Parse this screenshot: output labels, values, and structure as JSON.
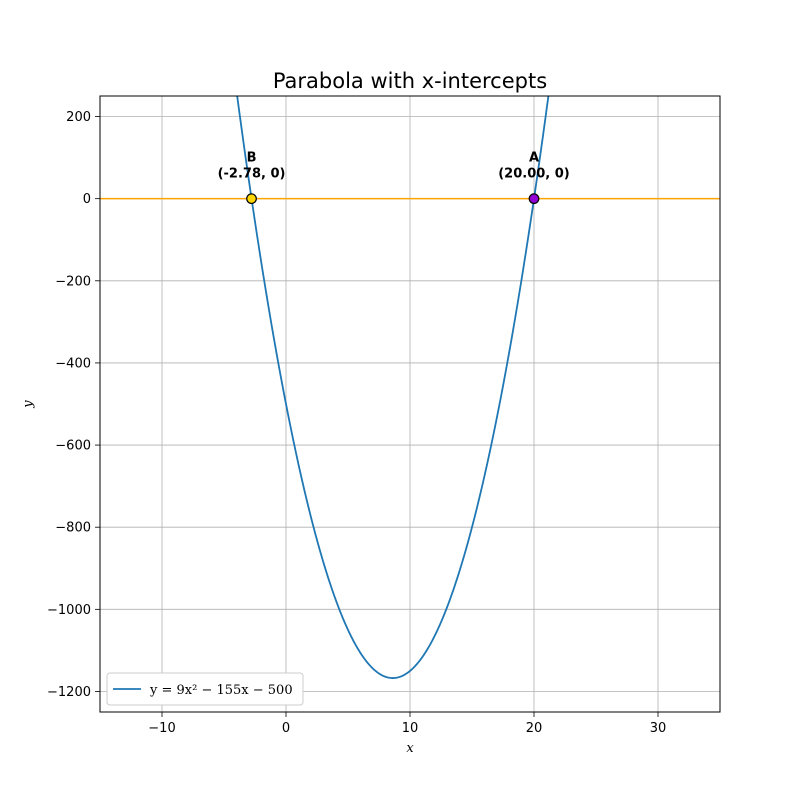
{
  "chart_data": {
    "type": "line",
    "title": "Parabola with x-intercepts",
    "xlabel": "x",
    "ylabel": "y",
    "xlim": [
      -15,
      35
    ],
    "ylim": [
      -1250,
      250
    ],
    "xticks": [
      -10,
      0,
      10,
      20,
      30
    ],
    "xtick_labels": [
      "−10",
      "0",
      "10",
      "20",
      "30"
    ],
    "yticks": [
      200,
      0,
      -200,
      -400,
      -600,
      -800,
      -1000,
      -1200
    ],
    "ytick_labels": [
      "200",
      "0",
      "−200",
      "−400",
      "−600",
      "−800",
      "−1000",
      "−1200"
    ],
    "grid": true,
    "legend_position": "lower-left",
    "series": [
      {
        "name": "y = 9x² − 155x − 500",
        "equation": {
          "a": 9,
          "b": -155,
          "c": -500
        },
        "x_range": [
          -5,
          22
        ],
        "color": "#1f77b4"
      }
    ],
    "horizontal_line": {
      "y": 0,
      "color": "#ffa500"
    },
    "points": [
      {
        "label": "B",
        "coord_text": "(-2.78, 0)",
        "x": -2.78,
        "y": 0,
        "color": "#ffd700"
      },
      {
        "label": "A",
        "coord_text": "(20.00, 0)",
        "x": 20.0,
        "y": 0,
        "color": "#9400d3"
      }
    ]
  }
}
